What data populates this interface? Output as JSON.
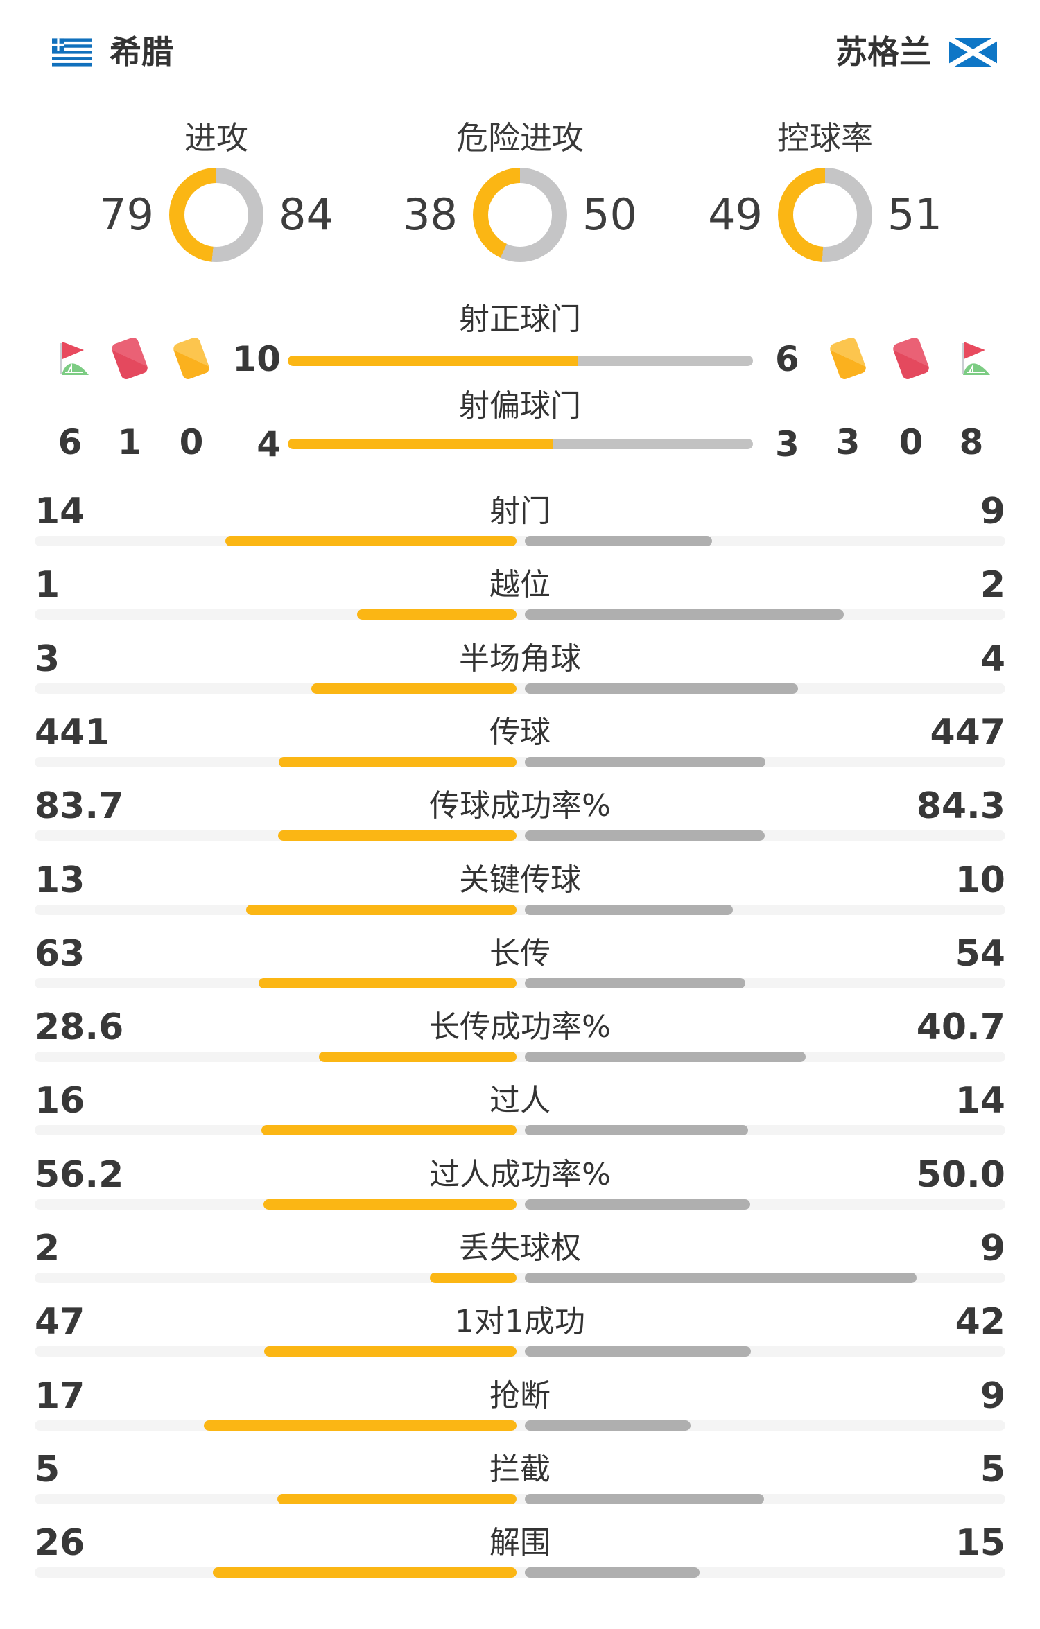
{
  "header": {
    "home_team": "希腊",
    "away_team": "苏格兰"
  },
  "colors": {
    "home_bar": "#FBB614",
    "away_bar": "#AFAFAF",
    "donut_away": "#C5C5C6",
    "special_away": "#C2C2C2",
    "track": "#F4F4F4",
    "label_text": "#333333",
    "value_text": "#383838",
    "red_card": "#E4495E",
    "yellow_card": "#FBB11E",
    "corner_flag_red": "#E84A5E",
    "corner_arc_green": "#7CCC83",
    "greece_flag_blue": "#1170BC",
    "scotland_flag_blue": "#0E76C6"
  },
  "chart_data": {
    "type": "bar",
    "subtype": "head-to-head-match-stats",
    "teams": [
      "希腊",
      "苏格兰"
    ],
    "donuts": [
      {
        "label": "进攻",
        "home": 79,
        "away": 84
      },
      {
        "label": "危险进攻",
        "home": 38,
        "away": 50
      },
      {
        "label": "控球率",
        "home": 49,
        "away": 51
      }
    ],
    "special_bars": [
      {
        "label": "射正球门",
        "home": 10,
        "away": 6
      },
      {
        "label": "射偏球门",
        "home": 4,
        "away": 3
      }
    ],
    "discipline": {
      "icons": [
        "corner-flag",
        "red-card",
        "yellow-card"
      ],
      "home": {
        "corners": 6,
        "red_cards": 1,
        "yellow_cards": 0
      },
      "away": {
        "corners": 8,
        "red_cards": 0,
        "yellow_cards": 3
      }
    },
    "rows": [
      {
        "label": "射门",
        "home": "14",
        "away": "9"
      },
      {
        "label": "越位",
        "home": "1",
        "away": "2"
      },
      {
        "label": "半场角球",
        "home": "3",
        "away": "4"
      },
      {
        "label": "传球",
        "home": "441",
        "away": "447"
      },
      {
        "label": "传球成功率%",
        "home": "83.7",
        "away": "84.3"
      },
      {
        "label": "关键传球",
        "home": "13",
        "away": "10"
      },
      {
        "label": "长传",
        "home": "63",
        "away": "54"
      },
      {
        "label": "长传成功率%",
        "home": "28.6",
        "away": "40.7"
      },
      {
        "label": "过人",
        "home": "16",
        "away": "14"
      },
      {
        "label": "过人成功率%",
        "home": "56.2",
        "away": "50.0"
      },
      {
        "label": "丢失球权",
        "home": "2",
        "away": "9"
      },
      {
        "label": "1对1成功",
        "home": "47",
        "away": "42"
      },
      {
        "label": "抢断",
        "home": "17",
        "away": "9"
      },
      {
        "label": "拦截",
        "home": "5",
        "away": "5"
      },
      {
        "label": "解围",
        "home": "26",
        "away": "15"
      }
    ]
  }
}
